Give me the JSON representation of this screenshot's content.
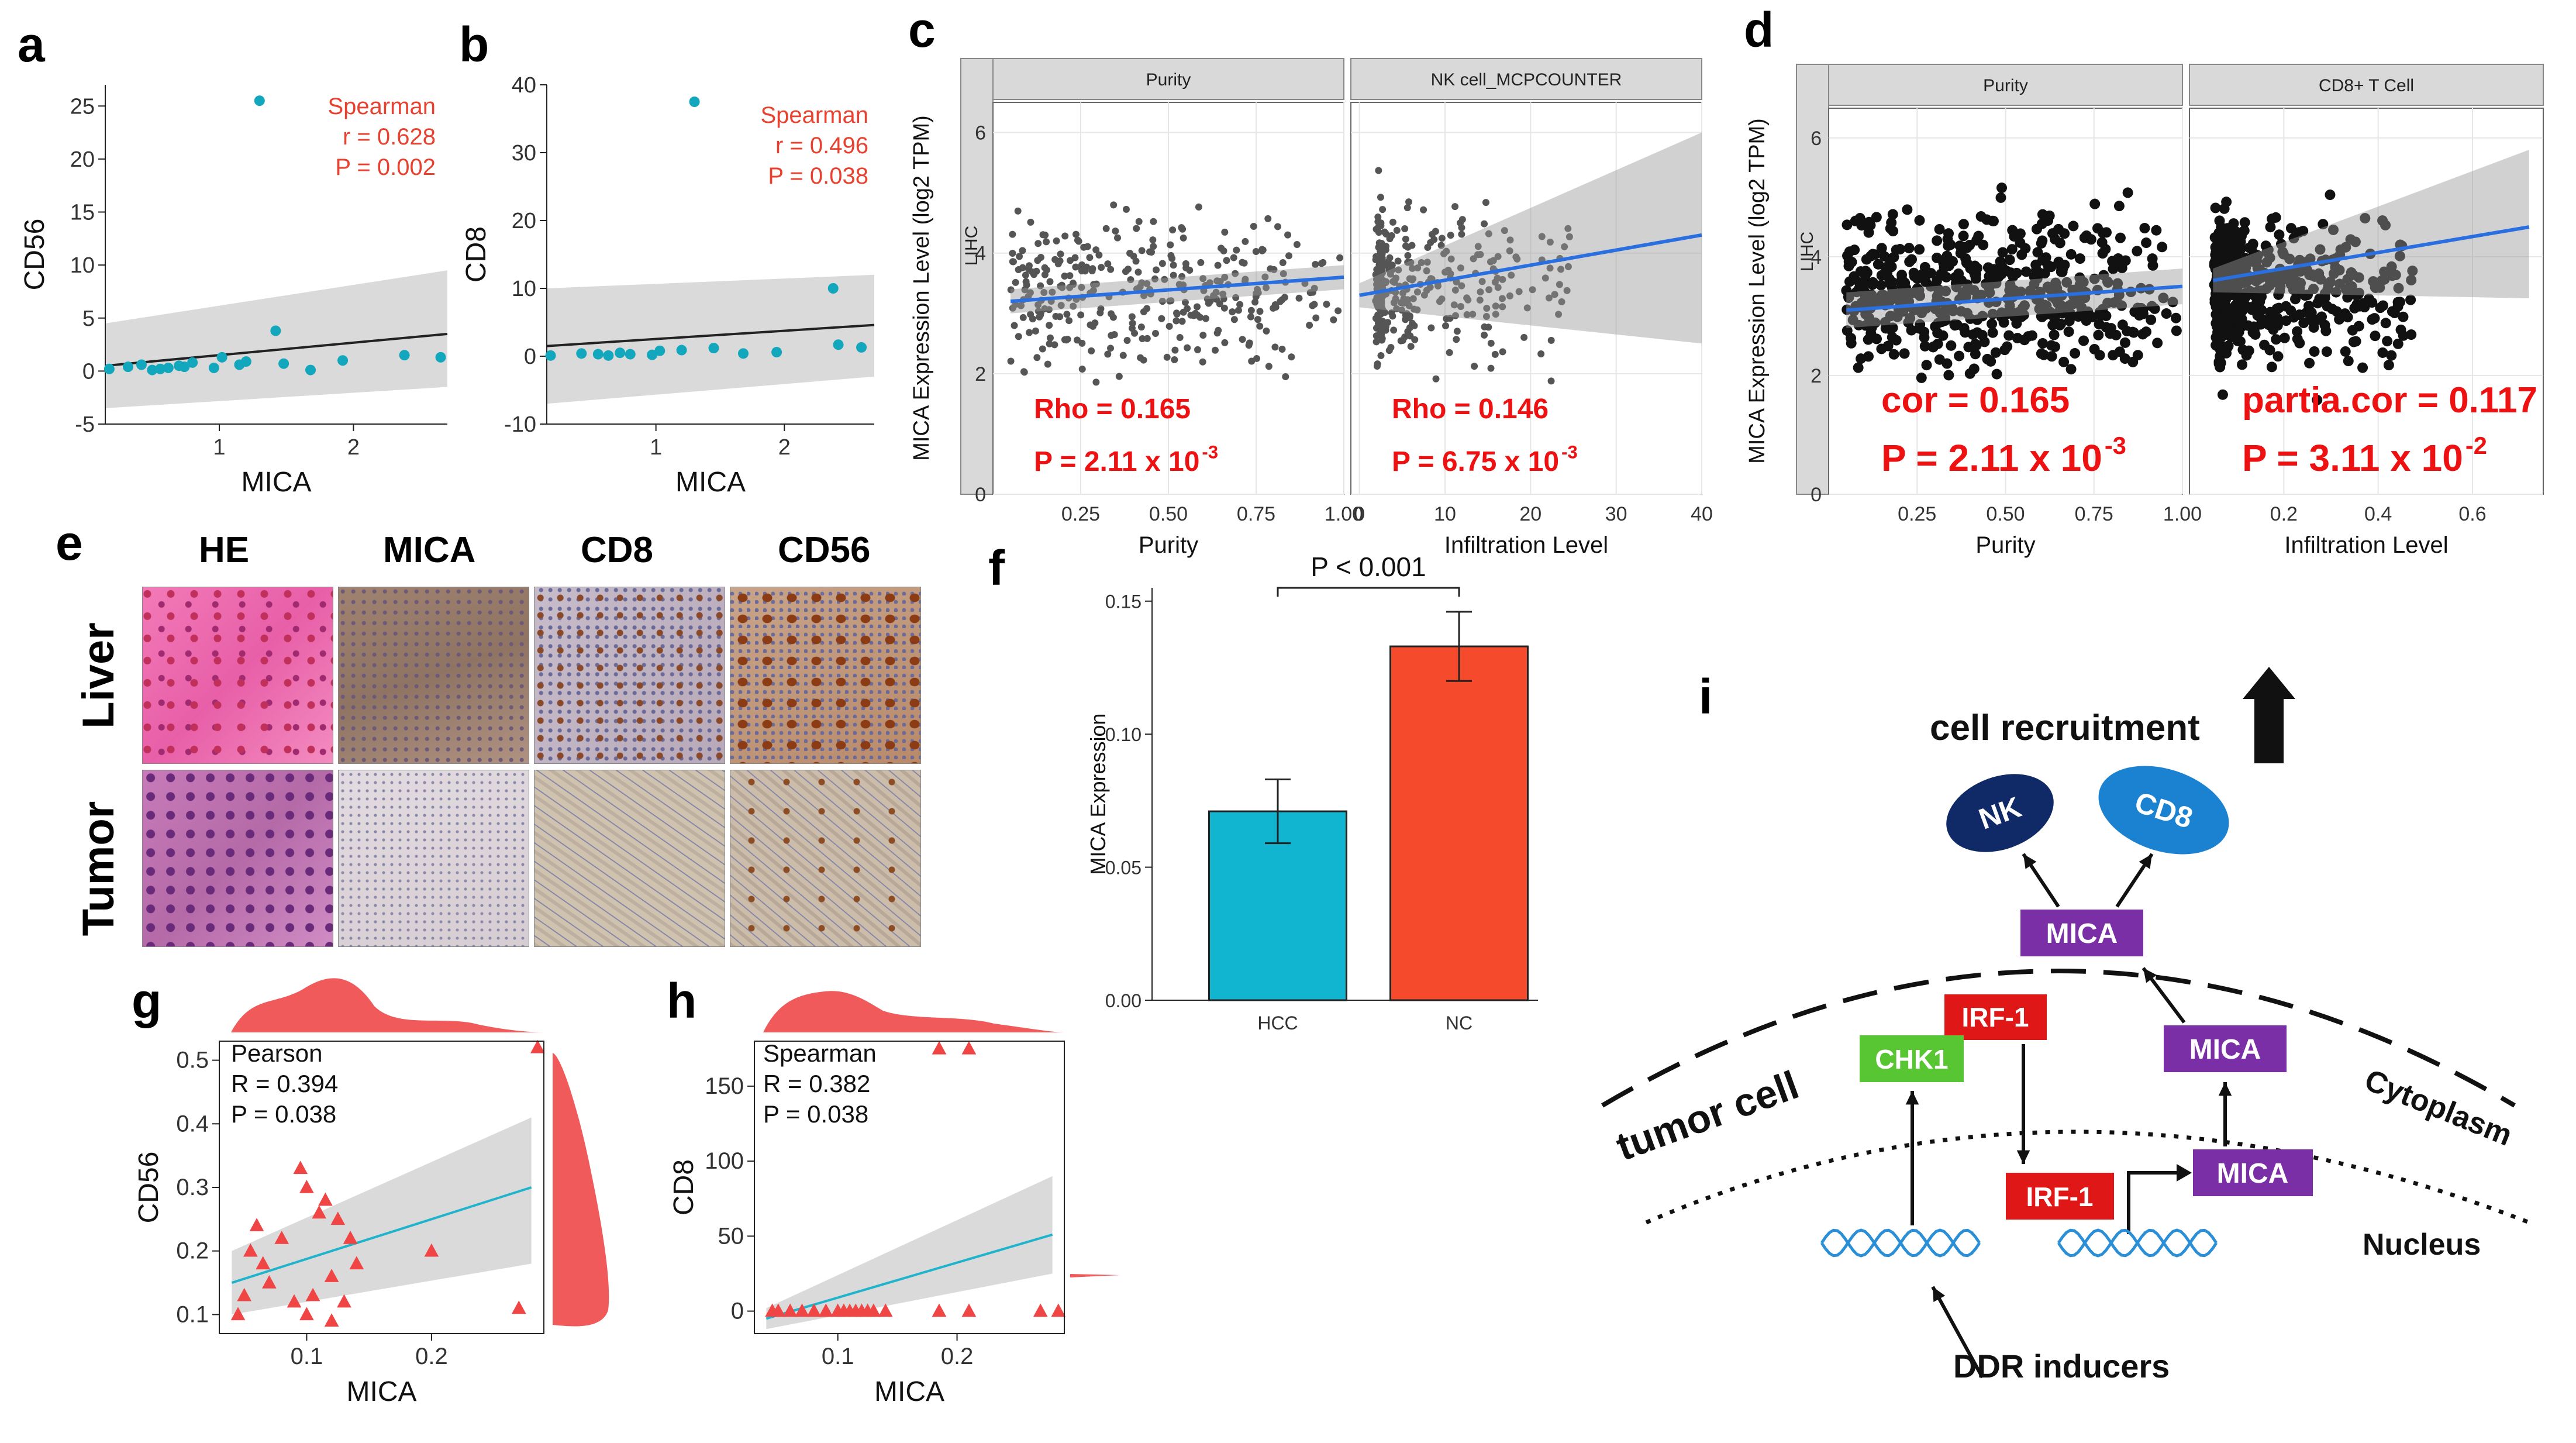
{
  "chart_data": [
    {
      "id": "a",
      "type": "scatter",
      "label": "a",
      "xlabel": "MICA",
      "ylabel": "CD56",
      "xlim": [
        0.15,
        2.7
      ],
      "ylim": [
        -5,
        27
      ],
      "xticks": [
        "1",
        "2"
      ],
      "yticks": [
        "25",
        "20",
        "15",
        "10",
        "5",
        "0",
        "-5"
      ],
      "x": [
        0.18,
        0.32,
        0.42,
        0.5,
        0.56,
        0.62,
        0.7,
        0.74,
        0.8,
        0.96,
        1.02,
        1.15,
        1.2,
        1.3,
        1.42,
        1.48,
        1.68,
        1.92,
        2.38,
        2.65
      ],
      "y": [
        0.2,
        0.4,
        0.6,
        0.1,
        0.2,
        0.3,
        0.5,
        0.4,
        0.8,
        0.3,
        1.3,
        0.6,
        0.9,
        25.5,
        3.8,
        0.7,
        0.1,
        1.0,
        1.5,
        1.3
      ],
      "fit": {
        "x": [
          0.15,
          2.7
        ],
        "y": [
          0.5,
          3.5
        ],
        "lower": [
          -3.5,
          -1.5
        ],
        "upper": [
          4.5,
          9.5
        ]
      },
      "stat_lines": [
        "Spearman",
        "r = 0.628",
        "P = 0.002"
      ]
    },
    {
      "id": "b",
      "type": "scatter",
      "label": "b",
      "xlabel": "MICA",
      "ylabel": "CD8",
      "xlim": [
        0.15,
        2.7
      ],
      "ylim": [
        -10,
        40
      ],
      "xticks": [
        "1",
        "2"
      ],
      "yticks": [
        "40",
        "30",
        "20",
        "10",
        "0",
        "-10"
      ],
      "x": [
        0.18,
        0.42,
        0.55,
        0.63,
        0.72,
        0.8,
        0.97,
        1.03,
        1.2,
        1.3,
        1.45,
        1.68,
        1.94,
        2.38,
        2.42,
        2.6
      ],
      "y": [
        0.1,
        0.4,
        0.3,
        0.1,
        0.5,
        0.3,
        0.2,
        0.8,
        0.9,
        37.5,
        1.2,
        0.4,
        0.6,
        10.0,
        1.7,
        1.3
      ],
      "fit": {
        "x": [
          0.15,
          2.7
        ],
        "y": [
          1.5,
          4.6
        ],
        "lower": [
          -7,
          -3
        ],
        "upper": [
          10,
          12
        ]
      },
      "stat_lines": [
        "Spearman",
        "r = 0.496",
        "P = 0.038"
      ]
    },
    {
      "id": "c",
      "type": "scatter",
      "label": "c",
      "ylabel": "MICA Expression Level (log2 TPM)",
      "row_strip": "LIHC",
      "panels": [
        {
          "strip": "Purity",
          "xlabel": "Purity",
          "xlim": [
            0.0,
            1.0
          ],
          "xticks": [
            "0.25",
            "0.50",
            "0.75",
            "1.00"
          ],
          "ylim": [
            0,
            6.5
          ],
          "yticks": [
            "6",
            "4",
            "2",
            "0"
          ],
          "fit": {
            "x": [
              0.05,
              1.0
            ],
            "y": [
              3.2,
              3.6
            ],
            "lower": [
              3.0,
              3.4
            ],
            "upper": [
              3.4,
              3.8
            ]
          },
          "stats": [
            "Rho = 0.165",
            "P = 2.11 x 10",
            "-3"
          ]
        },
        {
          "strip": "NK cell_MCPCOUNTER",
          "xlabel": "Infiltration Level",
          "xlim": [
            -1,
            40
          ],
          "xticks": [
            "0",
            "10",
            "20",
            "30",
            "40"
          ],
          "ylim": [
            0,
            6.5
          ],
          "yticks": [],
          "fit": {
            "x": [
              0,
              40
            ],
            "y": [
              3.3,
              4.3
            ],
            "lower": [
              3.1,
              2.5
            ],
            "upper": [
              3.5,
              6.0
            ]
          },
          "stats": [
            "Rho = 0.146",
            "P = 6.75 x 10",
            "-3"
          ]
        }
      ]
    },
    {
      "id": "d",
      "type": "scatter",
      "label": "d",
      "ylabel": "MICA Expression Level (log2 TPM)",
      "row_strip": "LIHC",
      "panels": [
        {
          "strip": "Purity",
          "xlabel": "Purity",
          "xlim": [
            0.0,
            1.0
          ],
          "xticks": [
            "0.25",
            "0.50",
            "0.75",
            "1.00"
          ],
          "ylim": [
            0,
            6.5
          ],
          "yticks": [
            "6",
            "4",
            "2",
            "0"
          ],
          "fit": {
            "x": [
              0.05,
              1.0
            ],
            "y": [
              3.1,
              3.5
            ],
            "lower": [
              2.8,
              3.2
            ],
            "upper": [
              3.4,
              3.8
            ]
          },
          "stats": [
            "cor = 0.165",
            "P = 2.11 x 10",
            "-3"
          ]
        },
        {
          "strip": "CD8+ T Cell",
          "xlabel": "Infiltration Level",
          "xlim": [
            0.0,
            0.75
          ],
          "xticks": [
            "0.2",
            "0.4",
            "0.6"
          ],
          "ylim": [
            0,
            6.5
          ],
          "yticks": [],
          "fit": {
            "x": [
              0.05,
              0.72
            ],
            "y": [
              3.6,
              4.5
            ],
            "lower": [
              3.4,
              3.3
            ],
            "upper": [
              3.8,
              5.8
            ]
          },
          "stats": [
            "partia.cor = 0.117",
            "P = 3.11 x 10",
            "-2"
          ]
        }
      ]
    },
    {
      "id": "f",
      "type": "bar",
      "label": "f",
      "ylabel": "MICA Expression",
      "categories": [
        "HCC",
        "NC"
      ],
      "values": [
        0.071,
        0.133
      ],
      "errors": [
        0.012,
        0.013
      ],
      "colors": [
        "#11b5cf",
        "#f64a2c"
      ],
      "ylim": [
        0,
        0.155
      ],
      "yticks": [
        "0.00",
        "0.05",
        "0.10",
        "0.15"
      ],
      "annotation": "P < 0.001"
    },
    {
      "id": "g",
      "type": "scatter",
      "label": "g",
      "xlabel": "MICA",
      "ylabel": "CD56",
      "marker": "triangle",
      "xlim": [
        0.03,
        0.29
      ],
      "ylim": [
        0.07,
        0.53
      ],
      "xticks": [
        "0.1",
        "0.2"
      ],
      "yticks": [
        "0.5",
        "0.4",
        "0.3",
        "0.2",
        "0.1"
      ],
      "x": [
        0.045,
        0.05,
        0.055,
        0.06,
        0.065,
        0.07,
        0.08,
        0.09,
        0.095,
        0.1,
        0.1,
        0.105,
        0.11,
        0.115,
        0.12,
        0.12,
        0.125,
        0.13,
        0.135,
        0.14,
        0.2,
        0.27,
        0.285
      ],
      "y": [
        0.1,
        0.13,
        0.2,
        0.24,
        0.18,
        0.15,
        0.22,
        0.12,
        0.33,
        0.3,
        0.1,
        0.13,
        0.26,
        0.28,
        0.09,
        0.16,
        0.25,
        0.12,
        0.22,
        0.18,
        0.2,
        0.11,
        0.52
      ],
      "fit": {
        "x": [
          0.04,
          0.28
        ],
        "y": [
          0.15,
          0.3
        ],
        "lower": [
          0.1,
          0.18
        ],
        "upper": [
          0.2,
          0.41
        ]
      },
      "stat_lines": [
        "Pearson",
        "R = 0.394",
        "P = 0.038"
      ]
    },
    {
      "id": "h",
      "type": "scatter",
      "label": "h",
      "xlabel": "MICA",
      "ylabel": "CD8",
      "marker": "triangle",
      "xlim": [
        0.03,
        0.29
      ],
      "ylim": [
        -15,
        180
      ],
      "xticks": [
        "0.1",
        "0.2"
      ],
      "yticks": [
        "150",
        "100",
        "50",
        "0"
      ],
      "x": [
        0.045,
        0.05,
        0.06,
        0.07,
        0.08,
        0.09,
        0.1,
        0.105,
        0.11,
        0.115,
        0.12,
        0.125,
        0.13,
        0.14,
        0.185,
        0.21,
        0.185,
        0.21,
        0.27,
        0.285
      ],
      "y": [
        0,
        0,
        0,
        0,
        0,
        0,
        0,
        0,
        0,
        0,
        0,
        0,
        0,
        0,
        175,
        175,
        0,
        0,
        0,
        0
      ],
      "fit": {
        "x": [
          0.04,
          0.28
        ],
        "y": [
          -5,
          51
        ],
        "lower": [
          -12,
          25
        ],
        "upper": [
          2,
          90
        ]
      },
      "stat_lines": [
        "Spearman",
        "R = 0.382",
        "P = 0.038"
      ]
    }
  ],
  "panel_e": {
    "label": "e",
    "columns": [
      "HE",
      "MICA",
      "CD8",
      "CD56"
    ],
    "rows": [
      "Liver",
      "Tumor"
    ]
  },
  "panel_i": {
    "label": "i",
    "recruitment": "cell recruitment",
    "nk": "NK",
    "cd8": "CD8",
    "mica_top": "MICA",
    "mica_right": "MICA",
    "mica_bottom": "MICA",
    "irf1_top": "IRF-1",
    "irf1_bottom": "IRF-1",
    "chk1": "CHK1",
    "tumor_cell": "tumor cell",
    "cytoplasm": "Cytoplasm",
    "nucleus": "Nucleus",
    "ddr": "DDR inducers"
  }
}
